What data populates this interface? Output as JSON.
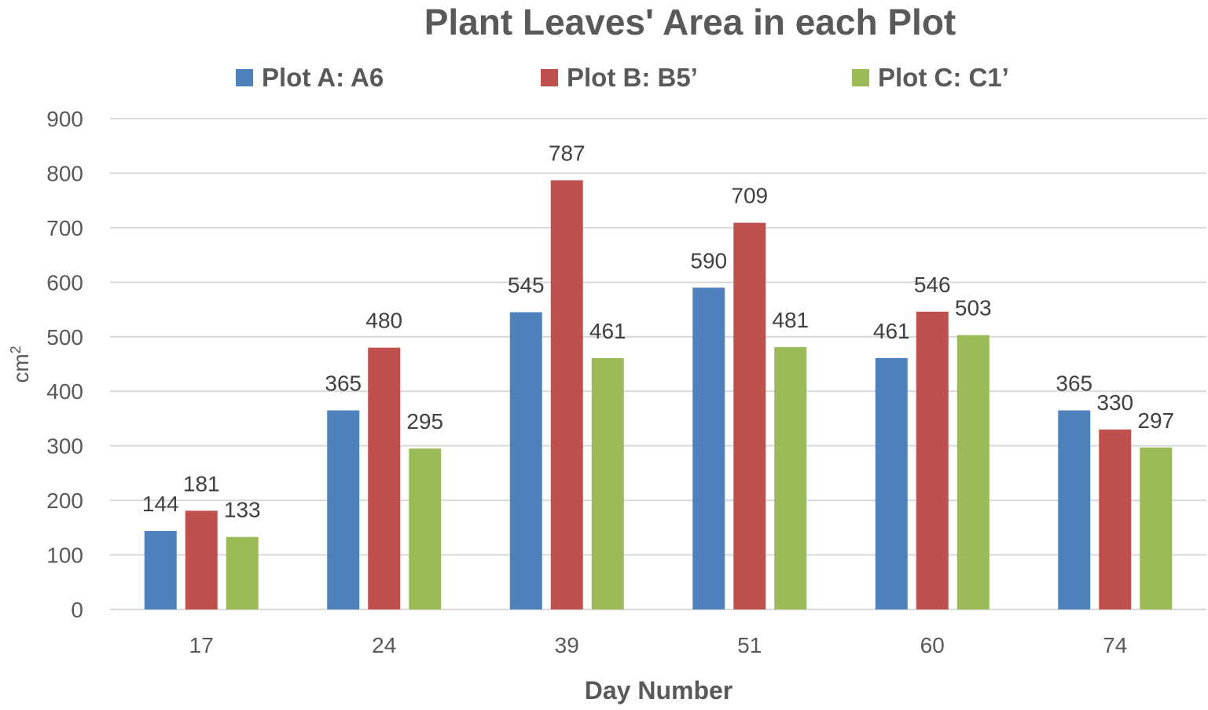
{
  "chart_data": {
    "type": "bar",
    "title": "Plant Leaves' Area in each Plot",
    "xlabel": "Day Number",
    "ylabel_base": "cm",
    "ylabel_sup": "2",
    "categories": [
      "17",
      "24",
      "39",
      "51",
      "60",
      "74"
    ],
    "series": [
      {
        "name": "Plot A: A6",
        "color": "#4f81bd",
        "values": [
          144,
          365,
          545,
          590,
          461,
          365
        ]
      },
      {
        "name": "Plot B: B5’",
        "color": "#c0504d",
        "values": [
          181,
          480,
          787,
          709,
          546,
          330
        ]
      },
      {
        "name": "Plot C: C1’",
        "color": "#9bbb59",
        "values": [
          133,
          295,
          461,
          481,
          503,
          297
        ]
      }
    ],
    "ylim": [
      0,
      900
    ],
    "yticks": [
      0,
      100,
      200,
      300,
      400,
      500,
      600,
      700,
      800,
      900
    ],
    "grid": true,
    "legend_position": "top"
  }
}
